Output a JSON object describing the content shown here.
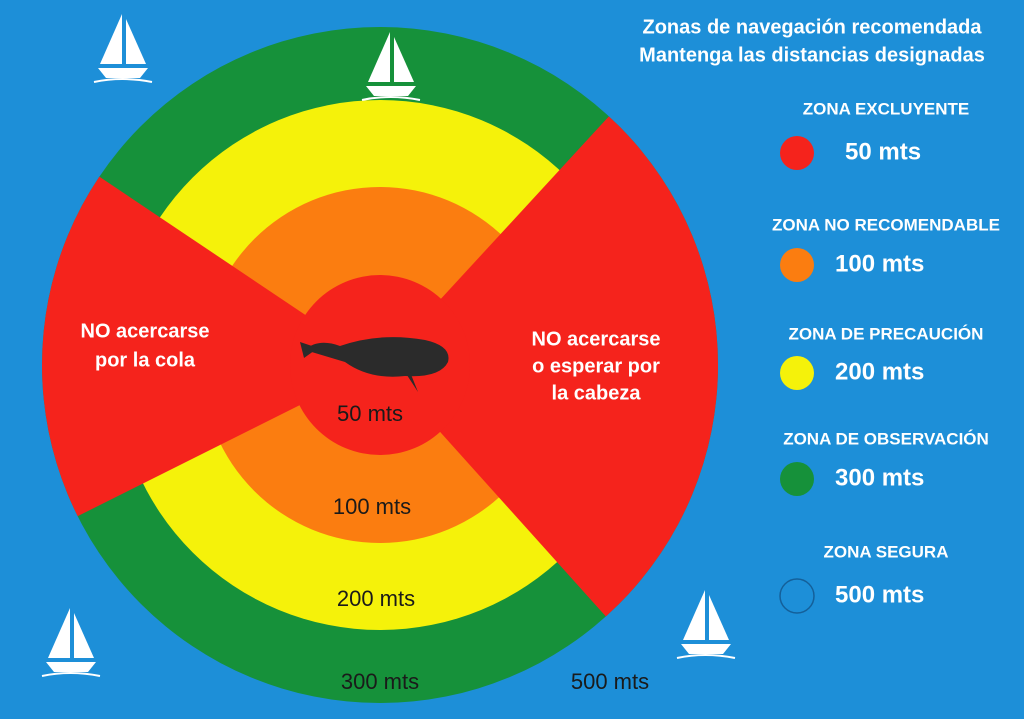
{
  "header": {
    "title_lines": [
      "Zonas de navegación recomendada",
      "Mantenga las distancias designadas"
    ]
  },
  "legend": [
    {
      "label": "ZONA EXCLUYENTE",
      "distance": "50 mts"
    },
    {
      "label": "ZONA NO RECOMENDABLE",
      "distance": "100 mts"
    },
    {
      "label": "ZONA DE PRECAUCIÓN",
      "distance": "200 mts"
    },
    {
      "label": "ZONA DE OBSERVACIÓN",
      "distance": "300 mts"
    },
    {
      "label": "ZONA SEGURA",
      "distance": "500 mts"
    }
  ],
  "diagram": {
    "tail_note": [
      "NO acercarse",
      "por la cola"
    ],
    "head_note": [
      "NO acercarse",
      "o esperar por",
      "la cabeza"
    ],
    "ring_labels": [
      "50 mts",
      "100 mts",
      "200 mts",
      "300 mts",
      "500 mts"
    ]
  }
}
